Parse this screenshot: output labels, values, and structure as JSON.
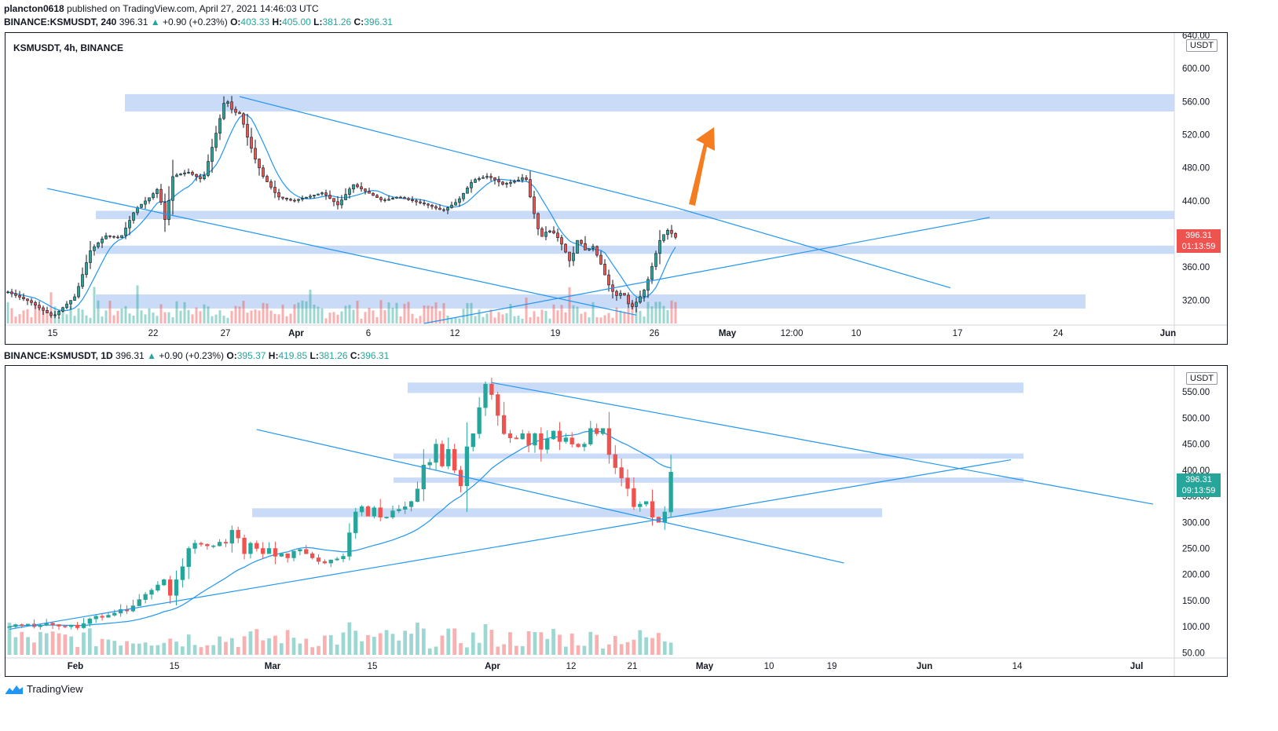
{
  "meta": {
    "author": "plancton0618",
    "published": "published on TradingView.com, April 27, 2021 14:46:03 UTC"
  },
  "top_header": {
    "symbol": "BINANCE:KSMUSDT, 240",
    "price": "396.31",
    "change": "+0.90 (+0.23%)",
    "o_label": "O:",
    "o": "403.33",
    "h_label": "H:",
    "h": "405.00",
    "l_label": "L:",
    "l": "381.26",
    "c_label": "C:",
    "c": "396.31"
  },
  "bottom_header": {
    "symbol": "BINANCE:KSMUSDT, 1D",
    "price": "396.31",
    "change": "+0.90 (+0.23%)",
    "o_label": "O:",
    "o": "395.37",
    "h_label": "H:",
    "h": "419.85",
    "l_label": "L:",
    "l": "381.26",
    "c_label": "C:",
    "c": "396.31"
  },
  "footer": {
    "brand": "TradingView"
  },
  "colors": {
    "up": "#26a69a",
    "down": "#ef5350",
    "ma": "#2196f3",
    "zone": "#bfd5f5",
    "arrow": "#f57c1f"
  },
  "chart_data": [
    {
      "type": "candlestick",
      "title": "KSMUSDT, 4h, BINANCE",
      "unit": "USDT",
      "y_ticks": [
        320,
        360,
        400,
        440,
        480,
        520,
        560,
        600,
        640
      ],
      "y_tick_labels": [
        "320.00",
        "360.00",
        "400.00",
        "440.00",
        "480.00",
        "520.00",
        "560.00",
        "600.00",
        "640.00"
      ],
      "ylim": [
        290,
        640
      ],
      "x_labels": [
        "15",
        "22",
        "27",
        "Apr",
        "6",
        "12",
        "19",
        "26",
        "May",
        "12:00",
        "10",
        "17",
        "24",
        "Jun"
      ],
      "x_index_range": [
        0,
        600
      ],
      "candle_count": 171,
      "anchors": [
        [
          0,
          330
        ],
        [
          6,
          318
        ],
        [
          12,
          300
        ],
        [
          18,
          325
        ],
        [
          22,
          380
        ],
        [
          26,
          398
        ],
        [
          30,
          395
        ],
        [
          34,
          430
        ],
        [
          38,
          445
        ],
        [
          40,
          455
        ],
        [
          42,
          415
        ],
        [
          44,
          470
        ],
        [
          48,
          475
        ],
        [
          52,
          465
        ],
        [
          56,
          530
        ],
        [
          58,
          565
        ],
        [
          60,
          548
        ],
        [
          62,
          545
        ],
        [
          64,
          515
        ],
        [
          66,
          490
        ],
        [
          68,
          470
        ],
        [
          72,
          445
        ],
        [
          76,
          440
        ],
        [
          80,
          445
        ],
        [
          84,
          450
        ],
        [
          88,
          435
        ],
        [
          92,
          460
        ],
        [
          96,
          450
        ],
        [
          100,
          440
        ],
        [
          104,
          445
        ],
        [
          108,
          440
        ],
        [
          112,
          435
        ],
        [
          116,
          428
        ],
        [
          120,
          440
        ],
        [
          124,
          465
        ],
        [
          128,
          470
        ],
        [
          132,
          460
        ],
        [
          136,
          465
        ],
        [
          138,
          470
        ],
        [
          140,
          430
        ],
        [
          142,
          395
        ],
        [
          144,
          405
        ],
        [
          146,
          400
        ],
        [
          148,
          385
        ],
        [
          150,
          365
        ],
        [
          152,
          395
        ],
        [
          154,
          380
        ],
        [
          156,
          385
        ],
        [
          158,
          365
        ],
        [
          160,
          340
        ],
        [
          162,
          325
        ],
        [
          164,
          330
        ],
        [
          166,
          310
        ],
        [
          168,
          320
        ],
        [
          170,
          335
        ],
        [
          172,
          365
        ],
        [
          174,
          395
        ],
        [
          176,
          405
        ],
        [
          178,
          396
        ]
      ],
      "last_price": "396.31",
      "countdown": "01:13:59",
      "zones": [
        [
          548,
          569
        ],
        [
          418,
          428
        ],
        [
          376,
          386
        ],
        [
          310,
          327
        ]
      ],
      "trendlines": [
        {
          "from": [
            59,
            566
          ],
          "to": [
            170,
            432
          ]
        },
        {
          "from": [
            170,
            432
          ],
          "to": [
            240,
            335
          ]
        },
        {
          "from": [
            10,
            455
          ],
          "to": [
            160,
            302
          ]
        },
        {
          "from": [
            106,
            292
          ],
          "to": [
            250,
            420
          ]
        }
      ]
    },
    {
      "type": "candlestick",
      "title": "KSMUSDT, 1D, BINANCE",
      "unit": "USDT",
      "y_ticks": [
        50,
        100,
        150,
        200,
        250,
        300,
        350,
        400,
        450,
        500,
        550
      ],
      "y_tick_labels": [
        "50.00",
        "100.00",
        "150.00",
        "200.00",
        "250.00",
        "300.00",
        "350.00",
        "400.00",
        "450.00",
        "500.00",
        "550.00"
      ],
      "ylim": [
        40,
        600
      ],
      "x_labels": [
        "Feb",
        "15",
        "Mar",
        "15",
        "Apr",
        "12",
        "21",
        "May",
        "10",
        "19",
        "Jun",
        "14",
        "Jul"
      ],
      "daily_closes": [
        100,
        104,
        102,
        105,
        100,
        103,
        107,
        104,
        101,
        100,
        103,
        98,
        106,
        115,
        120,
        118,
        122,
        126,
        133,
        130,
        140,
        152,
        162,
        170,
        180,
        190,
        160,
        190,
        215,
        250,
        260,
        258,
        255,
        255,
        262,
        260,
        285,
        270,
        240,
        260,
        250,
        240,
        250,
        235,
        240,
        232,
        245,
        248,
        240,
        232,
        225,
        222,
        228,
        230,
        235,
        280,
        320,
        330,
        312,
        328,
        310,
        310,
        322,
        325,
        330,
        340,
        364,
        410,
        415,
        450,
        408,
        440,
        400,
        370,
        445,
        470,
        520,
        565,
        545,
        505,
        470,
        462,
        460,
        470,
        448,
        470,
        440,
        460,
        475,
        455,
        462,
        450,
        445,
        450,
        480,
        470,
        480,
        430,
        405,
        385,
        365,
        330,
        335,
        340,
        310,
        300,
        320,
        396.31
      ],
      "last_price": "396.31",
      "countdown": "09:13:59",
      "zones": [
        [
          548,
          568
        ],
        [
          422,
          432
        ],
        [
          376,
          386
        ],
        [
          310,
          327
        ]
      ],
      "trendlines": [
        {
          "from": [
            78,
            568
          ],
          "to": [
            185,
            335
          ]
        },
        {
          "from": [
            40,
            478
          ],
          "to": [
            135,
            222
          ]
        },
        {
          "from": [
            0,
            95
          ],
          "to": [
            162,
            420
          ]
        }
      ]
    }
  ]
}
